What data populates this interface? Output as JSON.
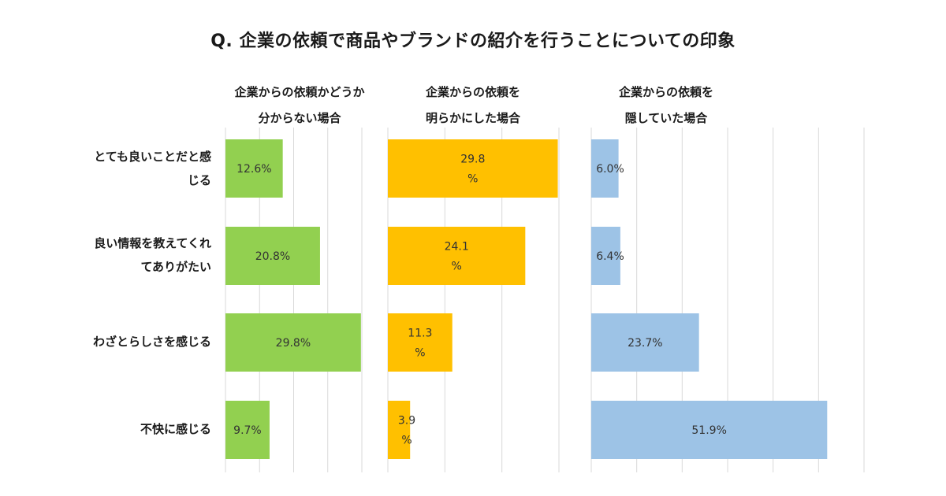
{
  "chart_data": {
    "type": "bar",
    "orientation": "horizontal",
    "title": "Q. 企業の依頼で商品やブランドの紹介を行うことについての印象",
    "categories": [
      [
        "とても良いことだと感",
        "じる"
      ],
      [
        "良い情報を教えてくれ",
        "てありがたい"
      ],
      [
        "わざとらしさを感じる"
      ],
      [
        "不快に感じる"
      ]
    ],
    "grid": true,
    "panels": [
      {
        "header": [
          "企業からの依頼かどうか",
          "分からない場合"
        ],
        "color": "#92d050",
        "values": [
          12.6,
          20.8,
          29.8,
          9.7
        ],
        "labels": [
          [
            "12.6%"
          ],
          [
            "20.8%"
          ],
          [
            "29.8%"
          ],
          [
            "9.7%"
          ]
        ],
        "xlim": [
          0,
          30
        ],
        "gridlines": 4
      },
      {
        "header": [
          "企業からの依頼を",
          "明らかにした場合"
        ],
        "color": "#ffc000",
        "values": [
          29.8,
          24.1,
          11.3,
          3.9
        ],
        "labels": [
          [
            "29.8",
            "%"
          ],
          [
            "24.1",
            "%"
          ],
          [
            "11.3",
            "%"
          ],
          [
            "3.9",
            "%"
          ]
        ],
        "xlim": [
          0,
          30
        ],
        "gridlines": 3
      },
      {
        "header": [
          "企業からの依頼を",
          "隠していた場合"
        ],
        "color": "#9dc3e6",
        "values": [
          6.0,
          6.4,
          23.7,
          51.9
        ],
        "labels": [
          [
            "6.0%"
          ],
          [
            "6.4%"
          ],
          [
            "23.7%"
          ],
          [
            "51.9%"
          ]
        ],
        "xlim": [
          0,
          60
        ],
        "gridlines": 6
      }
    ]
  }
}
